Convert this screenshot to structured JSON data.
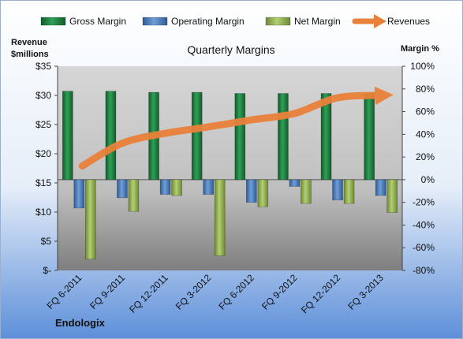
{
  "chart_data": {
    "type": "bar",
    "title": "Quarterly Margins",
    "left_axis_label_line1": "Revenue",
    "left_axis_label_line2": "$millions",
    "right_axis_label": "Margin %",
    "source": "Endologix",
    "categories": [
      "FQ 6-2011",
      "FQ 9-2011",
      "FQ 12-2011",
      "FQ 3-2012",
      "FQ 6-2012",
      "FQ 9-2012",
      "FQ 12-2012",
      "FQ 3-2013"
    ],
    "left_ticks": [
      "$-",
      "$5",
      "$10",
      "$15",
      "$20",
      "$25",
      "$30",
      "$35"
    ],
    "right_ticks": [
      "-80%",
      "-60%",
      "-40%",
      "-20%",
      "0%",
      "20%",
      "40%",
      "60%",
      "80%",
      "100%"
    ],
    "left_ylim": [
      0,
      35
    ],
    "right_ylim": [
      -80,
      100
    ],
    "series": [
      {
        "name": "Gross Margin",
        "axis": "right",
        "kind": "bar",
        "color": "#1E7A3E",
        "values": [
          78,
          78,
          77,
          77,
          76,
          76,
          76,
          76
        ]
      },
      {
        "name": "Operating Margin",
        "axis": "right",
        "kind": "bar",
        "color": "#4F81BD",
        "values": [
          -25,
          -16,
          -13,
          -13,
          -20,
          -6,
          -18,
          -14
        ]
      },
      {
        "name": "Net Margin",
        "axis": "right",
        "kind": "bar",
        "color": "#9BBB59",
        "values": [
          -70,
          -28,
          -14,
          -67,
          -24,
          -21,
          -21,
          -29
        ]
      },
      {
        "name": "Revenues",
        "axis": "left",
        "kind": "line",
        "color": "#E9813A",
        "values": [
          17.9,
          21.8,
          23.5,
          24.6,
          25.8,
          26.9,
          29.6,
          30.0
        ]
      }
    ],
    "legend_placement": "top",
    "grid": false
  }
}
